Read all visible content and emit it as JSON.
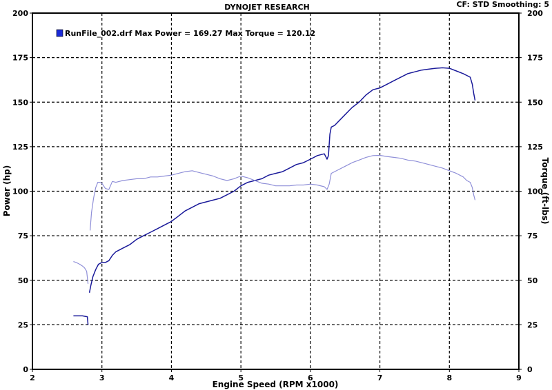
{
  "header": {
    "title": "DYNOJET RESEARCH",
    "correction": "CF: STD  Smoothing: 5"
  },
  "legend": {
    "text": "RunFile_002.drf Max Power = 169.27     Max Torque = 120.12",
    "swatch_color": "#1a2ad8"
  },
  "colors": {
    "power": "#1a1a9a",
    "torque": "#8f8fd8",
    "grid": "#000000",
    "background": "#ffffff"
  },
  "chart_data": {
    "type": "line",
    "title": "DYNOJET RESEARCH",
    "xlabel": "Engine Speed (RPM x1000)",
    "ylabel_left": "Power (hp)",
    "ylabel_right": "Torque (ft-lbs)",
    "xlim": [
      2,
      9
    ],
    "ylim": [
      0,
      200
    ],
    "xticks": [
      2,
      3,
      4,
      5,
      6,
      7,
      8,
      9
    ],
    "yticks": [
      0,
      25,
      50,
      75,
      100,
      125,
      150,
      175,
      200
    ],
    "grid": true,
    "series": [
      {
        "name": "RunFile_002.drf Max Power = 169.27",
        "segments": [
          {
            "x": [
              2.59,
              2.65,
              2.72,
              2.79,
              2.8
            ],
            "y": [
              30,
              30,
              30,
              29.5,
              25
            ]
          },
          {
            "x": [
              2.82,
              2.84,
              2.87,
              2.91,
              2.95,
              3.0,
              3.05,
              3.1,
              3.15,
              3.2,
              3.3,
              3.4,
              3.5,
              3.6,
              3.7,
              3.8,
              3.9,
              4.0,
              4.1,
              4.2,
              4.3,
              4.4,
              4.5,
              4.6,
              4.7,
              4.8,
              4.9,
              5.0,
              5.1,
              5.2,
              5.3,
              5.4,
              5.5,
              5.6,
              5.7,
              5.8,
              5.9,
              6.0,
              6.1,
              6.2,
              6.24,
              6.26,
              6.28,
              6.3,
              6.35,
              6.4,
              6.5,
              6.6,
              6.7,
              6.8,
              6.9,
              7.0,
              7.1,
              7.2,
              7.3,
              7.4,
              7.5,
              7.6,
              7.7,
              7.8,
              7.9,
              8.0,
              8.1,
              8.2,
              8.25,
              8.3,
              8.33,
              8.35,
              8.37
            ],
            "y": [
              43,
              47,
              52,
              56,
              59,
              60,
              60,
              61,
              64,
              66,
              68,
              70,
              73,
              75,
              77,
              79,
              81,
              83,
              86,
              89,
              91,
              93,
              94,
              95,
              96,
              98,
              100,
              103,
              105,
              106,
              107,
              109,
              110,
              111,
              113,
              115,
              116,
              118,
              120,
              121,
              118,
              120,
              132,
              136,
              137,
              139,
              143,
              147,
              150,
              154,
              157,
              158,
              160,
              162,
              164,
              166,
              167,
              168,
              168.5,
              169,
              169.27,
              169,
              167.5,
              166,
              165,
              164,
              160,
              155,
              151
            ]
          }
        ]
      },
      {
        "name": "RunFile_002.drf Max Torque = 120.12",
        "segments": [
          {
            "x": [
              2.59,
              2.63,
              2.68,
              2.72,
              2.75,
              2.78,
              2.8
            ],
            "y": [
              60.5,
              60,
              59,
              58,
              57,
              55,
              48
            ]
          },
          {
            "x": [
              2.83,
              2.85,
              2.88,
              2.91,
              2.94,
              2.97,
              3.0,
              3.05,
              3.1,
              3.15,
              3.2,
              3.25,
              3.3,
              3.4,
              3.5,
              3.6,
              3.7,
              3.8,
              3.9,
              4.0,
              4.1,
              4.2,
              4.3,
              4.4,
              4.5,
              4.6,
              4.7,
              4.8,
              4.9,
              5.0,
              5.1,
              5.2,
              5.3,
              5.4,
              5.5,
              5.6,
              5.7,
              5.8,
              5.9,
              6.0,
              6.1,
              6.2,
              6.24,
              6.27,
              6.3,
              6.4,
              6.5,
              6.6,
              6.7,
              6.8,
              6.9,
              7.0,
              7.1,
              7.2,
              7.3,
              7.4,
              7.5,
              7.6,
              7.7,
              7.8,
              7.9,
              8.0,
              8.1,
              8.2,
              8.25,
              8.3,
              8.33,
              8.35,
              8.37
            ],
            "y": [
              78,
              88,
              96,
              102,
              105,
              105,
              104.5,
              101.5,
              101,
              105.5,
              105,
              105.5,
              106,
              106.5,
              107,
              107,
              108,
              108,
              108.5,
              109,
              110,
              111,
              111.5,
              110.5,
              109.5,
              108.5,
              107,
              106,
              107,
              108.5,
              107.5,
              106,
              104.5,
              104,
              103,
              103,
              103,
              103.5,
              103.5,
              104,
              103.5,
              102.5,
              101,
              104,
              110,
              112,
              114,
              116,
              117.5,
              119,
              120,
              120.12,
              119.5,
              119,
              118.5,
              117.5,
              117,
              116,
              115,
              114,
              113,
              111.5,
              110,
              108,
              106,
              105,
              102,
              98,
              95
            ]
          }
        ]
      }
    ]
  }
}
